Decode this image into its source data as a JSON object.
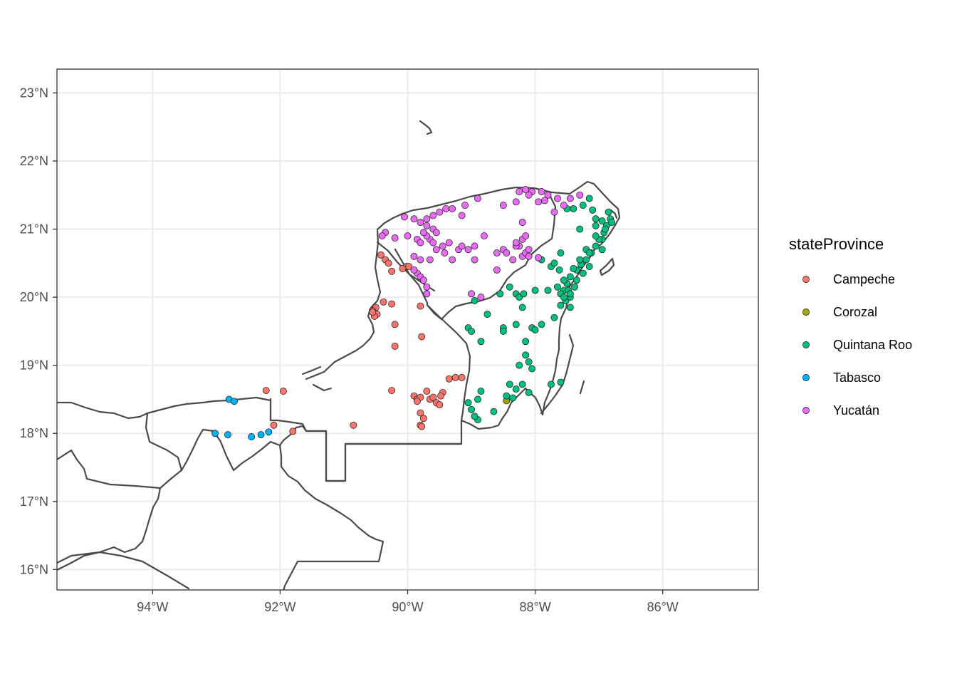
{
  "chart_data": {
    "type": "scatter",
    "title": "",
    "xlabel": "",
    "ylabel": "",
    "xlim": [
      -95.5,
      -84.5
    ],
    "ylim": [
      15.7,
      23.35
    ],
    "x_ticks": [
      {
        "value": -94,
        "label": "94°W"
      },
      {
        "value": -92,
        "label": "92°W"
      },
      {
        "value": -90,
        "label": "90°W"
      },
      {
        "value": -88,
        "label": "88°W"
      },
      {
        "value": -86,
        "label": "86°W"
      }
    ],
    "y_ticks": [
      {
        "value": 16,
        "label": "16°N"
      },
      {
        "value": 17,
        "label": "17°N"
      },
      {
        "value": 18,
        "label": "18°N"
      },
      {
        "value": 19,
        "label": "19°N"
      },
      {
        "value": 20,
        "label": "20°N"
      },
      {
        "value": 21,
        "label": "21°N"
      },
      {
        "value": 22,
        "label": "22°N"
      },
      {
        "value": 23,
        "label": "23°N"
      }
    ],
    "grid": true,
    "legend": {
      "title": "stateProvince",
      "position": "right",
      "entries": [
        {
          "name": "Campeche",
          "color": "#F8766D"
        },
        {
          "name": "Corozal",
          "color": "#A3A500"
        },
        {
          "name": "Quintana Roo",
          "color": "#00BF7D"
        },
        {
          "name": "Tabasco",
          "color": "#00B0F6"
        },
        {
          "name": "Yucatán",
          "color": "#E76BF3"
        }
      ]
    },
    "series": [
      {
        "name": "Campeche",
        "color": "#F8766D",
        "points": [
          [
            -90.42,
            20.62
          ],
          [
            -90.35,
            20.55
          ],
          [
            -90.3,
            20.5
          ],
          [
            -90.25,
            20.38
          ],
          [
            -90.02,
            20.45
          ],
          [
            -90.08,
            20.42
          ],
          [
            -89.98,
            20.45
          ],
          [
            -90.38,
            19.93
          ],
          [
            -90.25,
            19.9
          ],
          [
            -90.5,
            19.85
          ],
          [
            -90.55,
            19.8
          ],
          [
            -90.48,
            19.75
          ],
          [
            -90.52,
            19.72
          ],
          [
            -90.55,
            19.78
          ],
          [
            -90.2,
            19.6
          ],
          [
            -89.8,
            19.87
          ],
          [
            -89.78,
            19.42
          ],
          [
            -90.2,
            19.28
          ],
          [
            -90.25,
            18.63
          ],
          [
            -89.9,
            18.55
          ],
          [
            -89.85,
            18.5
          ],
          [
            -89.8,
            18.53
          ],
          [
            -89.85,
            18.47
          ],
          [
            -89.65,
            18.5
          ],
          [
            -89.6,
            18.53
          ],
          [
            -89.55,
            18.45
          ],
          [
            -89.45,
            18.6
          ],
          [
            -89.5,
            18.42
          ],
          [
            -89.7,
            18.62
          ],
          [
            -89.35,
            18.8
          ],
          [
            -89.25,
            18.82
          ],
          [
            -89.15,
            18.82
          ],
          [
            -89.8,
            18.3
          ],
          [
            -89.75,
            18.22
          ],
          [
            -89.8,
            18.12
          ],
          [
            -89.78,
            18.1
          ],
          [
            -90.85,
            18.12
          ],
          [
            -91.8,
            18.03
          ],
          [
            -92.1,
            18.12
          ],
          [
            -92.22,
            18.63
          ],
          [
            -91.95,
            18.62
          ],
          [
            -89.48,
            18.55
          ]
        ]
      },
      {
        "name": "Corozal",
        "color": "#A3A500",
        "points": [
          [
            -88.45,
            18.48
          ]
        ]
      },
      {
        "name": "Quintana Roo",
        "color": "#00BF7D",
        "points": [
          [
            -86.85,
            21.25
          ],
          [
            -86.82,
            21.15
          ],
          [
            -86.88,
            21.05
          ],
          [
            -86.8,
            21.1
          ],
          [
            -86.92,
            20.95
          ],
          [
            -86.95,
            20.85
          ],
          [
            -87.05,
            20.75
          ],
          [
            -87.12,
            20.65
          ],
          [
            -87.2,
            20.55
          ],
          [
            -87.28,
            20.48
          ],
          [
            -87.35,
            20.4
          ],
          [
            -87.45,
            20.3
          ],
          [
            -87.5,
            20.2
          ],
          [
            -87.55,
            20.1
          ],
          [
            -87.6,
            20.05
          ],
          [
            -87.65,
            20.15
          ],
          [
            -87.48,
            20.1
          ],
          [
            -87.52,
            19.95
          ],
          [
            -87.45,
            20.0
          ],
          [
            -87.55,
            20.25
          ],
          [
            -87.62,
            20.4
          ],
          [
            -87.75,
            20.45
          ],
          [
            -87.7,
            20.5
          ],
          [
            -87.2,
            20.7
          ],
          [
            -87.0,
            20.85
          ],
          [
            -86.9,
            21.0
          ],
          [
            -87.05,
            21.05
          ],
          [
            -86.95,
            21.12
          ],
          [
            -87.15,
            20.65
          ],
          [
            -87.3,
            20.55
          ],
          [
            -87.4,
            20.42
          ],
          [
            -87.38,
            20.15
          ],
          [
            -87.45,
            19.85
          ],
          [
            -87.55,
            20.0
          ],
          [
            -87.6,
            20.65
          ],
          [
            -87.5,
            21.3
          ],
          [
            -87.25,
            21.35
          ],
          [
            -87.1,
            21.28
          ],
          [
            -87.05,
            21.15
          ],
          [
            -87.4,
            21.3
          ],
          [
            -87.3,
            21.0
          ],
          [
            -87.05,
            20.9
          ],
          [
            -86.95,
            20.7
          ],
          [
            -87.15,
            20.45
          ],
          [
            -87.25,
            20.35
          ],
          [
            -87.35,
            20.25
          ],
          [
            -87.45,
            20.05
          ],
          [
            -87.6,
            19.88
          ],
          [
            -87.7,
            19.7
          ],
          [
            -87.9,
            19.6
          ],
          [
            -88.05,
            19.55
          ],
          [
            -88.15,
            19.35
          ],
          [
            -88.0,
            19.52
          ],
          [
            -88.3,
            19.6
          ],
          [
            -88.5,
            19.55
          ],
          [
            -88.5,
            19.5
          ],
          [
            -88.75,
            19.75
          ],
          [
            -88.95,
            19.95
          ],
          [
            -89.05,
            19.55
          ],
          [
            -89.0,
            19.5
          ],
          [
            -88.85,
            19.35
          ],
          [
            -88.55,
            20.05
          ],
          [
            -88.3,
            20.05
          ],
          [
            -88.25,
            20.0
          ],
          [
            -88.18,
            20.05
          ],
          [
            -88.2,
            19.85
          ],
          [
            -88.4,
            20.15
          ],
          [
            -88.0,
            20.1
          ],
          [
            -87.8,
            20.1
          ],
          [
            -88.15,
            19.15
          ],
          [
            -88.1,
            19.05
          ],
          [
            -88.05,
            18.95
          ],
          [
            -88.25,
            19.0
          ],
          [
            -87.75,
            18.72
          ],
          [
            -88.1,
            18.6
          ],
          [
            -88.4,
            18.72
          ],
          [
            -88.3,
            18.65
          ],
          [
            -88.45,
            18.55
          ],
          [
            -88.35,
            18.52
          ],
          [
            -88.2,
            18.72
          ],
          [
            -88.85,
            18.62
          ],
          [
            -88.9,
            18.5
          ],
          [
            -89.0,
            18.35
          ],
          [
            -88.9,
            18.2
          ],
          [
            -88.95,
            18.25
          ],
          [
            -89.05,
            18.45
          ],
          [
            -88.65,
            18.32
          ],
          [
            -87.6,
            18.75
          ],
          [
            -87.15,
            21.45
          ],
          [
            -87.9,
            20.55
          ]
        ]
      },
      {
        "name": "Tabasco",
        "color": "#00B0F6",
        "points": [
          [
            -92.8,
            18.5
          ],
          [
            -92.72,
            18.47
          ],
          [
            -93.02,
            18.0
          ],
          [
            -92.82,
            17.98
          ],
          [
            -92.45,
            17.95
          ],
          [
            -92.3,
            17.98
          ],
          [
            -92.18,
            18.02
          ]
        ]
      },
      {
        "name": "Yucatán",
        "color": "#E76BF3",
        "points": [
          [
            -89.9,
            21.15
          ],
          [
            -89.8,
            21.1
          ],
          [
            -89.7,
            21.05
          ],
          [
            -89.6,
            21.0
          ],
          [
            -89.55,
            20.95
          ],
          [
            -89.65,
            20.85
          ],
          [
            -89.6,
            20.8
          ],
          [
            -89.7,
            20.9
          ],
          [
            -89.75,
            20.95
          ],
          [
            -89.85,
            20.85
          ],
          [
            -89.8,
            20.8
          ],
          [
            -89.7,
            21.15
          ],
          [
            -89.6,
            21.2
          ],
          [
            -89.5,
            21.25
          ],
          [
            -89.4,
            21.3
          ],
          [
            -89.3,
            21.3
          ],
          [
            -89.1,
            21.35
          ],
          [
            -88.9,
            21.45
          ],
          [
            -89.15,
            21.2
          ],
          [
            -90.05,
            21.18
          ],
          [
            -90.35,
            20.95
          ],
          [
            -90.4,
            20.9
          ],
          [
            -90.2,
            20.87
          ],
          [
            -90.0,
            20.9
          ],
          [
            -89.55,
            20.7
          ],
          [
            -89.42,
            20.65
          ],
          [
            -89.3,
            20.55
          ],
          [
            -89.2,
            20.7
          ],
          [
            -89.15,
            20.75
          ],
          [
            -89.05,
            20.7
          ],
          [
            -88.95,
            20.75
          ],
          [
            -88.8,
            20.9
          ],
          [
            -88.95,
            20.55
          ],
          [
            -88.5,
            20.7
          ],
          [
            -88.45,
            20.65
          ],
          [
            -88.2,
            20.6
          ],
          [
            -88.15,
            20.65
          ],
          [
            -88.25,
            20.75
          ],
          [
            -88.1,
            20.7
          ],
          [
            -88.2,
            20.85
          ],
          [
            -88.15,
            20.9
          ],
          [
            -88.2,
            21.1
          ],
          [
            -88.25,
            21.55
          ],
          [
            -88.15,
            21.58
          ],
          [
            -88.05,
            21.55
          ],
          [
            -88.1,
            21.5
          ],
          [
            -87.9,
            21.55
          ],
          [
            -87.8,
            21.5
          ],
          [
            -87.65,
            21.45
          ],
          [
            -87.55,
            21.35
          ],
          [
            -87.45,
            21.45
          ],
          [
            -87.3,
            21.5
          ],
          [
            -87.85,
            21.42
          ],
          [
            -87.95,
            21.4
          ],
          [
            -87.7,
            21.25
          ],
          [
            -88.5,
            21.35
          ],
          [
            -89.85,
            20.35
          ],
          [
            -89.8,
            20.3
          ],
          [
            -89.75,
            20.25
          ],
          [
            -89.7,
            20.15
          ],
          [
            -89.7,
            20.05
          ],
          [
            -89.9,
            20.4
          ],
          [
            -89.8,
            20.55
          ],
          [
            -89.0,
            20.05
          ],
          [
            -88.85,
            20.0
          ],
          [
            -88.6,
            20.4
          ],
          [
            -88.6,
            20.65
          ],
          [
            -88.3,
            20.75
          ],
          [
            -88.35,
            20.55
          ],
          [
            -88.3,
            20.8
          ],
          [
            -89.65,
            20.55
          ],
          [
            -89.45,
            20.75
          ],
          [
            -89.35,
            20.8
          ],
          [
            -88.1,
            20.6
          ],
          [
            -87.95,
            20.58
          ],
          [
            -89.9,
            20.6
          ],
          [
            -88.3,
            21.4
          ]
        ]
      }
    ]
  }
}
